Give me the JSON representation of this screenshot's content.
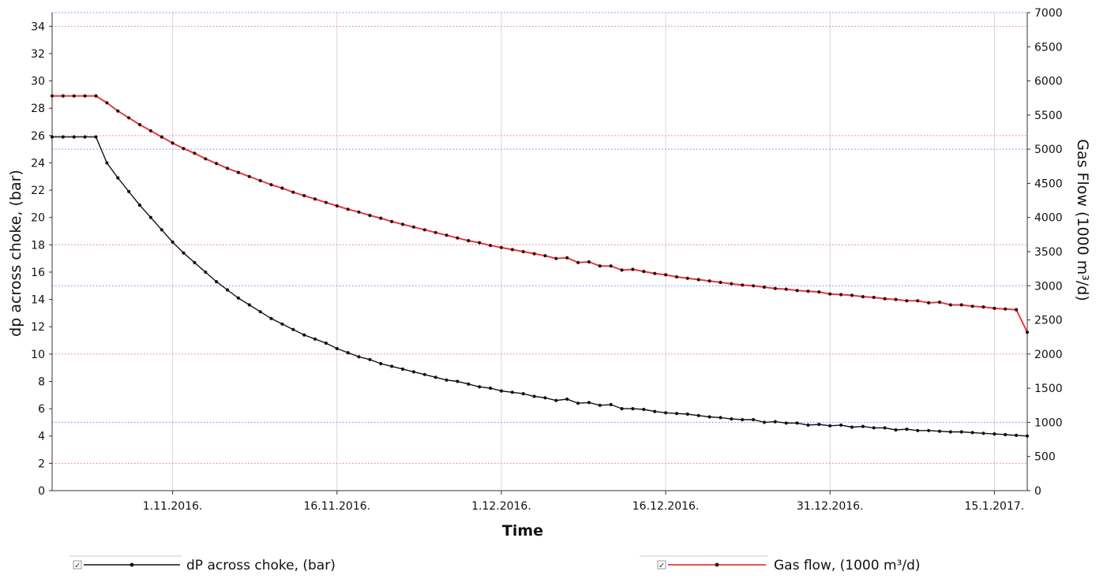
{
  "chart_data": {
    "type": "line",
    "title": "",
    "xlabel": "Time",
    "ylabel": "dp across choke, (bar)",
    "y2label": "Gas Flow (1000 m³/d)",
    "x_start": "2016-10-21",
    "x_end": "2017-01-18",
    "x_ticks": [
      {
        "date": "2016-11-01",
        "label": "1.11.2016."
      },
      {
        "date": "2016-11-16",
        "label": "16.11.2016."
      },
      {
        "date": "2016-12-01",
        "label": "1.12.2016."
      },
      {
        "date": "2016-12-16",
        "label": "16.12.2016."
      },
      {
        "date": "2016-12-31",
        "label": "31.12.2016."
      },
      {
        "date": "2017-01-15",
        "label": "15.1.2017."
      }
    ],
    "ylim": [
      0,
      35
    ],
    "y_ticks": [
      0,
      2,
      4,
      6,
      8,
      10,
      12,
      14,
      16,
      18,
      20,
      22,
      24,
      26,
      28,
      30,
      32,
      34
    ],
    "y2lim": [
      0,
      7000
    ],
    "y2_ticks": [
      0,
      500,
      1000,
      1500,
      2000,
      2500,
      3000,
      3500,
      4000,
      4500,
      5000,
      5500,
      6000,
      6500,
      7000
    ],
    "grid": {
      "vertical_at_x_ticks": true,
      "red_dotted_y": [
        2,
        10,
        18,
        26,
        34
      ],
      "blue_dotted_y2": [
        1000,
        3000,
        5000,
        7000
      ]
    },
    "legend_position": "bottom",
    "colors": {
      "dp": "#111111",
      "gas": "#e8393f"
    },
    "series": [
      {
        "name": "dP across choke, (bar)",
        "axis": "left",
        "color": "#111111",
        "x": [
          "2016-10-21",
          "2016-10-22",
          "2016-10-23",
          "2016-10-24",
          "2016-10-25",
          "2016-10-26",
          "2016-10-27",
          "2016-10-28",
          "2016-10-29",
          "2016-10-30",
          "2016-10-31",
          "2016-11-01",
          "2016-11-02",
          "2016-11-03",
          "2016-11-04",
          "2016-11-05",
          "2016-11-06",
          "2016-11-07",
          "2016-11-08",
          "2016-11-09",
          "2016-11-10",
          "2016-11-11",
          "2016-11-12",
          "2016-11-13",
          "2016-11-14",
          "2016-11-15",
          "2016-11-16",
          "2016-11-17",
          "2016-11-18",
          "2016-11-19",
          "2016-11-20",
          "2016-11-21",
          "2016-11-22",
          "2016-11-23",
          "2016-11-24",
          "2016-11-25",
          "2016-11-26",
          "2016-11-27",
          "2016-11-28",
          "2016-11-29",
          "2016-11-30",
          "2016-12-01",
          "2016-12-02",
          "2016-12-03",
          "2016-12-04",
          "2016-12-05",
          "2016-12-06",
          "2016-12-07",
          "2016-12-08",
          "2016-12-09",
          "2016-12-10",
          "2016-12-11",
          "2016-12-12",
          "2016-12-13",
          "2016-12-14",
          "2016-12-15",
          "2016-12-16",
          "2016-12-17",
          "2016-12-18",
          "2016-12-19",
          "2016-12-20",
          "2016-12-21",
          "2016-12-22",
          "2016-12-23",
          "2016-12-24",
          "2016-12-25",
          "2016-12-26",
          "2016-12-27",
          "2016-12-28",
          "2016-12-29",
          "2016-12-30",
          "2016-12-31",
          "2017-01-01",
          "2017-01-02",
          "2017-01-03",
          "2017-01-04",
          "2017-01-05",
          "2017-01-06",
          "2017-01-07",
          "2017-01-08",
          "2017-01-09",
          "2017-01-10",
          "2017-01-11",
          "2017-01-12",
          "2017-01-13",
          "2017-01-14",
          "2017-01-15",
          "2017-01-16",
          "2017-01-17",
          "2017-01-18"
        ],
        "y": [
          25.9,
          25.9,
          25.9,
          25.9,
          25.9,
          24.0,
          22.9,
          21.9,
          20.9,
          20.0,
          19.1,
          18.2,
          17.4,
          16.7,
          16.0,
          15.3,
          14.7,
          14.1,
          13.6,
          13.1,
          12.6,
          12.2,
          11.8,
          11.4,
          11.1,
          10.8,
          10.4,
          10.1,
          9.8,
          9.6,
          9.3,
          9.1,
          8.9,
          8.7,
          8.5,
          8.3,
          8.1,
          8.0,
          7.8,
          7.6,
          7.5,
          7.3,
          7.2,
          7.1,
          6.9,
          6.8,
          6.6,
          6.7,
          6.4,
          6.45,
          6.25,
          6.3,
          6.0,
          6.0,
          5.95,
          5.8,
          5.7,
          5.65,
          5.6,
          5.5,
          5.4,
          5.35,
          5.25,
          5.2,
          5.2,
          5.0,
          5.05,
          4.95,
          4.95,
          4.8,
          4.85,
          4.75,
          4.8,
          4.65,
          4.7,
          4.6,
          4.6,
          4.45,
          4.5,
          4.4,
          4.4,
          4.35,
          4.3,
          4.3,
          4.25,
          4.2,
          4.15,
          4.1,
          4.05,
          4.0
        ]
      },
      {
        "name": "Gas flow, (1000 m³/d)",
        "axis": "right",
        "color": "#e8393f",
        "x": [
          "2016-10-21",
          "2016-10-22",
          "2016-10-23",
          "2016-10-24",
          "2016-10-25",
          "2016-10-26",
          "2016-10-27",
          "2016-10-28",
          "2016-10-29",
          "2016-10-30",
          "2016-10-31",
          "2016-11-01",
          "2016-11-02",
          "2016-11-03",
          "2016-11-04",
          "2016-11-05",
          "2016-11-06",
          "2016-11-07",
          "2016-11-08",
          "2016-11-09",
          "2016-11-10",
          "2016-11-11",
          "2016-11-12",
          "2016-11-13",
          "2016-11-14",
          "2016-11-15",
          "2016-11-16",
          "2016-11-17",
          "2016-11-18",
          "2016-11-19",
          "2016-11-20",
          "2016-11-21",
          "2016-11-22",
          "2016-11-23",
          "2016-11-24",
          "2016-11-25",
          "2016-11-26",
          "2016-11-27",
          "2016-11-28",
          "2016-11-29",
          "2016-11-30",
          "2016-12-01",
          "2016-12-02",
          "2016-12-03",
          "2016-12-04",
          "2016-12-05",
          "2016-12-06",
          "2016-12-07",
          "2016-12-08",
          "2016-12-09",
          "2016-12-10",
          "2016-12-11",
          "2016-12-12",
          "2016-12-13",
          "2016-12-14",
          "2016-12-15",
          "2016-12-16",
          "2016-12-17",
          "2016-12-18",
          "2016-12-19",
          "2016-12-20",
          "2016-12-21",
          "2016-12-22",
          "2016-12-23",
          "2016-12-24",
          "2016-12-25",
          "2016-12-26",
          "2016-12-27",
          "2016-12-28",
          "2016-12-29",
          "2016-12-30",
          "2016-12-31",
          "2017-01-01",
          "2017-01-02",
          "2017-01-03",
          "2017-01-04",
          "2017-01-05",
          "2017-01-06",
          "2017-01-07",
          "2017-01-08",
          "2017-01-09",
          "2017-01-10",
          "2017-01-11",
          "2017-01-12",
          "2017-01-13",
          "2017-01-14",
          "2017-01-15",
          "2017-01-16",
          "2017-01-17",
          "2017-01-18"
        ],
        "y": [
          5780,
          5780,
          5780,
          5780,
          5780,
          5680,
          5560,
          5460,
          5360,
          5270,
          5180,
          5090,
          5010,
          4940,
          4860,
          4790,
          4720,
          4660,
          4600,
          4540,
          4480,
          4430,
          4370,
          4320,
          4270,
          4220,
          4170,
          4120,
          4080,
          4030,
          3990,
          3940,
          3900,
          3860,
          3820,
          3780,
          3740,
          3700,
          3660,
          3630,
          3590,
          3560,
          3530,
          3500,
          3470,
          3440,
          3400,
          3410,
          3340,
          3350,
          3290,
          3290,
          3230,
          3240,
          3210,
          3180,
          3160,
          3130,
          3110,
          3090,
          3070,
          3050,
          3030,
          3010,
          3000,
          2980,
          2960,
          2950,
          2930,
          2920,
          2910,
          2880,
          2870,
          2860,
          2840,
          2830,
          2810,
          2800,
          2780,
          2780,
          2750,
          2760,
          2720,
          2720,
          2700,
          2690,
          2670,
          2660,
          2650,
          2320
        ]
      }
    ]
  },
  "legend": {
    "items": [
      {
        "label": "dP across choke, (bar)",
        "checked": true,
        "color": "#111111"
      },
      {
        "label": "Gas flow, (1000 m³/d)",
        "checked": true,
        "color": "#e8393f"
      }
    ]
  }
}
